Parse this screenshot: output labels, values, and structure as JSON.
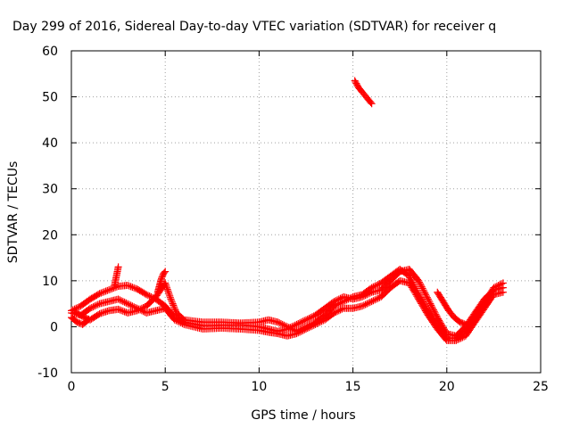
{
  "chart_data": {
    "type": "scatter",
    "title": "Day 299 of 2016, Sidereal Day-to-day VTEC variation (SDTVAR) for receiver q",
    "xlabel": "GPS time / hours",
    "ylabel": "SDTVAR / TECUs",
    "xlim": [
      0,
      25
    ],
    "ylim": [
      -10,
      60
    ],
    "xticks": [
      0,
      5,
      10,
      15,
      20,
      25
    ],
    "yticks": [
      -10,
      0,
      10,
      20,
      30,
      40,
      50,
      60
    ],
    "xtick_labels": [
      "0",
      "5",
      "10",
      "15",
      "20",
      "25"
    ],
    "ytick_labels": [
      "-10",
      "0",
      "10",
      "20",
      "30",
      "40",
      "50",
      "60"
    ],
    "grid": true,
    "legend": "none",
    "marker": "plus",
    "series_color": "#ff0000",
    "tracks": [
      [
        [
          0.0,
          3.5
        ],
        [
          0.5,
          4.5
        ],
        [
          1.0,
          6.0
        ],
        [
          1.5,
          7.2
        ],
        [
          2.0,
          8.0
        ],
        [
          2.5,
          8.8
        ],
        [
          3.0,
          9.0
        ],
        [
          3.5,
          8.2
        ],
        [
          4.0,
          7.0
        ],
        [
          4.5,
          6.0
        ],
        [
          5.0,
          4.5
        ],
        [
          5.5,
          2.0
        ],
        [
          6.0,
          1.0
        ],
        [
          7.0,
          0.2
        ],
        [
          8.0,
          0.3
        ],
        [
          9.0,
          0.4
        ],
        [
          10.0,
          0.0
        ],
        [
          10.5,
          -0.5
        ],
        [
          11.0,
          -1.0
        ],
        [
          11.5,
          -0.5
        ],
        [
          12.0,
          0.5
        ],
        [
          12.5,
          1.5
        ],
        [
          13.0,
          2.5
        ],
        [
          13.5,
          4.0
        ],
        [
          14.0,
          5.5
        ],
        [
          14.5,
          6.5
        ],
        [
          15.0,
          6.0
        ],
        [
          15.5,
          6.5
        ],
        [
          16.0,
          7.5
        ],
        [
          16.5,
          8.0
        ],
        [
          17.0,
          10.0
        ],
        [
          17.5,
          12.0
        ],
        [
          18.0,
          12.5
        ],
        [
          18.5,
          10.0
        ],
        [
          19.0,
          6.0
        ],
        [
          19.5,
          2.0
        ],
        [
          20.0,
          -1.5
        ],
        [
          20.5,
          -2.0
        ],
        [
          21.0,
          0.0
        ],
        [
          21.5,
          3.0
        ],
        [
          22.0,
          6.0
        ],
        [
          22.5,
          8.0
        ],
        [
          23.0,
          8.5
        ]
      ],
      [
        [
          0.2,
          3.2
        ],
        [
          0.7,
          2.0
        ],
        [
          1.0,
          1.5
        ],
        [
          1.5,
          2.8
        ],
        [
          2.0,
          3.5
        ],
        [
          2.5,
          3.8
        ],
        [
          3.0,
          3.0
        ],
        [
          3.5,
          3.5
        ],
        [
          4.0,
          4.5
        ],
        [
          4.5,
          6.5
        ],
        [
          5.0,
          9.5
        ],
        [
          5.3,
          6.0
        ],
        [
          5.6,
          3.0
        ],
        [
          6.0,
          1.5
        ],
        [
          7.0,
          1.0
        ],
        [
          8.0,
          1.0
        ],
        [
          9.0,
          0.8
        ],
        [
          10.0,
          1.0
        ],
        [
          10.5,
          1.5
        ],
        [
          11.0,
          1.0
        ],
        [
          11.5,
          0.0
        ],
        [
          12.0,
          -1.0
        ],
        [
          12.5,
          0.0
        ],
        [
          13.0,
          1.0
        ],
        [
          13.5,
          2.5
        ],
        [
          14.0,
          4.5
        ],
        [
          14.5,
          5.5
        ],
        [
          15.0,
          6.5
        ],
        [
          15.5,
          7.0
        ],
        [
          16.0,
          8.5
        ],
        [
          16.5,
          9.5
        ],
        [
          17.0,
          11.0
        ],
        [
          17.5,
          12.5
        ],
        [
          18.0,
          11.0
        ],
        [
          18.5,
          7.0
        ],
        [
          19.0,
          3.5
        ],
        [
          19.5,
          0.5
        ],
        [
          20.0,
          -2.5
        ],
        [
          20.5,
          -2.5
        ],
        [
          21.0,
          -1.0
        ],
        [
          21.5,
          2.0
        ],
        [
          22.0,
          5.0
        ],
        [
          22.5,
          8.5
        ],
        [
          23.0,
          9.5
        ]
      ],
      [
        [
          0.0,
          3.0
        ],
        [
          0.5,
          2.5
        ],
        [
          1.0,
          4.0
        ],
        [
          1.5,
          5.0
        ],
        [
          2.0,
          5.5
        ],
        [
          2.5,
          6.0
        ],
        [
          3.0,
          5.0
        ],
        [
          3.5,
          4.0
        ],
        [
          4.0,
          3.0
        ],
        [
          4.5,
          3.5
        ],
        [
          5.0,
          4.0
        ],
        [
          5.5,
          1.5
        ],
        [
          6.0,
          0.5
        ],
        [
          7.0,
          -0.5
        ],
        [
          8.0,
          -0.3
        ],
        [
          9.0,
          -0.5
        ],
        [
          10.0,
          -0.8
        ],
        [
          10.5,
          -1.2
        ],
        [
          11.0,
          -1.5
        ],
        [
          11.5,
          -2.0
        ],
        [
          12.0,
          -1.5
        ],
        [
          12.5,
          -0.5
        ],
        [
          13.0,
          0.5
        ],
        [
          13.5,
          1.5
        ],
        [
          14.0,
          3.0
        ],
        [
          14.5,
          4.0
        ],
        [
          15.0,
          4.0
        ],
        [
          15.5,
          4.5
        ],
        [
          16.0,
          5.5
        ],
        [
          16.5,
          6.5
        ],
        [
          17.0,
          8.5
        ],
        [
          17.5,
          10.0
        ],
        [
          18.0,
          9.5
        ],
        [
          18.5,
          6.0
        ],
        [
          19.0,
          2.5
        ],
        [
          19.5,
          -0.5
        ],
        [
          20.0,
          -3.0
        ],
        [
          20.5,
          -3.0
        ],
        [
          21.0,
          -2.0
        ],
        [
          21.5,
          1.0
        ],
        [
          22.0,
          4.0
        ],
        [
          22.5,
          7.0
        ],
        [
          23.0,
          7.5
        ]
      ],
      [
        [
          19.5,
          7.5
        ],
        [
          19.8,
          5.5
        ],
        [
          20.1,
          3.5
        ],
        [
          20.4,
          2.0
        ],
        [
          20.7,
          1.0
        ],
        [
          21.0,
          0.5
        ]
      ],
      [
        [
          0.0,
          2.0
        ],
        [
          0.3,
          1.0
        ],
        [
          0.6,
          0.5
        ],
        [
          0.9,
          1.5
        ]
      ],
      [
        [
          15.1,
          53.5
        ],
        [
          15.3,
          52.0
        ],
        [
          15.5,
          51.0
        ],
        [
          15.8,
          49.5
        ],
        [
          16.0,
          48.5
        ]
      ],
      [
        [
          2.3,
          9.0
        ],
        [
          2.35,
          10.0
        ],
        [
          2.4,
          11.0
        ],
        [
          2.45,
          12.0
        ],
        [
          2.5,
          13.0
        ]
      ],
      [
        [
          4.6,
          7.5
        ],
        [
          4.7,
          9.0
        ],
        [
          4.8,
          10.5
        ],
        [
          4.9,
          11.5
        ],
        [
          5.0,
          12.0
        ]
      ]
    ]
  }
}
